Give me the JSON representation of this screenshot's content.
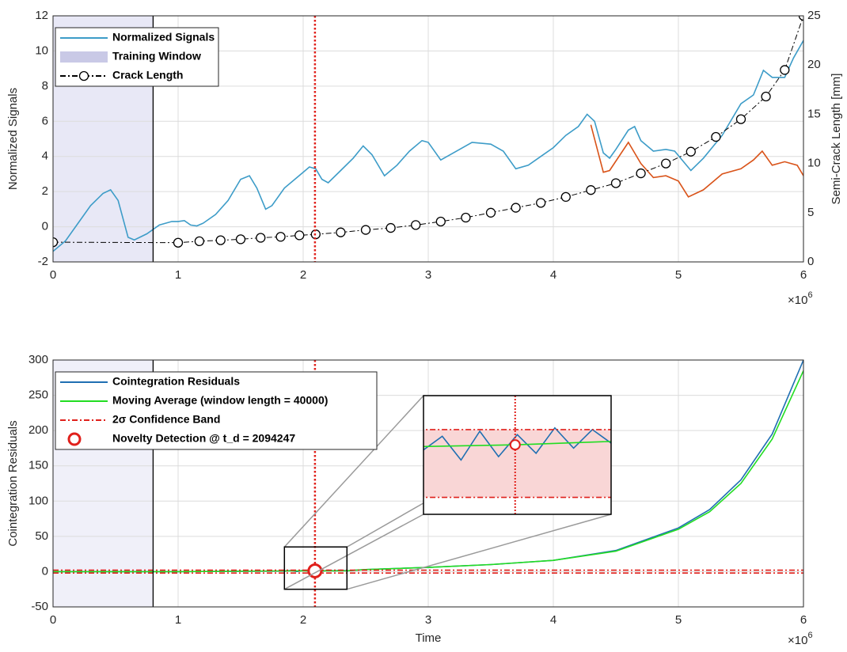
{
  "chart_data": [
    {
      "type": "line",
      "ylabel": "Normalized Signals",
      "y2label": "Semi-Crack Length [mm]",
      "x_multiplier": {
        "base": "×10",
        "exp": "6"
      },
      "xlim": [
        0,
        6
      ],
      "xticks": [
        0,
        1,
        2,
        3,
        4,
        5,
        6
      ],
      "ylim": [
        -2,
        12
      ],
      "yticks": [
        -2,
        0,
        2,
        4,
        6,
        8,
        10,
        12
      ],
      "y2lim": [
        0,
        25
      ],
      "y2ticks": [
        0,
        5,
        10,
        15,
        20,
        25
      ],
      "grid": true,
      "spans": [
        {
          "name": "Training Window",
          "x": [
            0,
            0.8
          ],
          "color": "#d9d9f0"
        }
      ],
      "vlines": [
        {
          "x": 0.8,
          "color": "#000000",
          "style": "solid"
        },
        {
          "x": 2.094247,
          "color": "#e0201b",
          "style": "dotted"
        }
      ],
      "series": [
        {
          "name": "Normalized Signals",
          "color": "#3d9cc8",
          "x": [
            0,
            0.1,
            0.2,
            0.3,
            0.4,
            0.46,
            0.52,
            0.6,
            0.65,
            0.75,
            0.85,
            0.95,
            1.0,
            1.05,
            1.1,
            1.15,
            1.2,
            1.3,
            1.4,
            1.5,
            1.57,
            1.63,
            1.7,
            1.75,
            1.85,
            1.95,
            2.05,
            2.1,
            2.15,
            2.2,
            2.3,
            2.4,
            2.48,
            2.55,
            2.65,
            2.75,
            2.85,
            2.95,
            3.0,
            3.1,
            3.2,
            3.35,
            3.5,
            3.6,
            3.7,
            3.8,
            3.9,
            4.0,
            4.1,
            4.2,
            4.27,
            4.33,
            4.4,
            4.45,
            4.5,
            4.6,
            4.65,
            4.7,
            4.8,
            4.9,
            4.97,
            5.1,
            5.2,
            5.35,
            5.5,
            5.6,
            5.68,
            5.75,
            5.85,
            5.92,
            6.0
          ],
          "values": [
            -1.4,
            -0.8,
            0.2,
            1.2,
            1.9,
            2.1,
            1.5,
            -0.6,
            -0.75,
            -0.4,
            0.1,
            0.3,
            0.3,
            0.35,
            0.1,
            0.05,
            0.2,
            0.7,
            1.5,
            2.7,
            2.9,
            2.2,
            1.0,
            1.2,
            2.2,
            2.8,
            3.4,
            3.3,
            2.7,
            2.5,
            3.2,
            3.9,
            4.6,
            4.1,
            2.9,
            3.5,
            4.3,
            4.9,
            4.8,
            3.8,
            4.2,
            4.8,
            4.7,
            4.3,
            3.3,
            3.5,
            4.0,
            4.5,
            5.2,
            5.7,
            6.4,
            6.0,
            4.2,
            3.9,
            4.4,
            5.5,
            5.7,
            4.9,
            4.3,
            4.4,
            4.3,
            3.2,
            3.9,
            5.2,
            7.0,
            7.5,
            8.9,
            8.5,
            8.5,
            9.6,
            10.6
          ]
        },
        {
          "color": "#d95319",
          "x": [
            4.3,
            4.4,
            4.45,
            4.6,
            4.7,
            4.8,
            4.9,
            5.0,
            5.08,
            5.2,
            5.35,
            5.5,
            5.6,
            5.67,
            5.75,
            5.85,
            5.95,
            6.0
          ],
          "values": [
            5.8,
            3.1,
            3.2,
            4.8,
            3.6,
            2.8,
            2.9,
            2.6,
            1.7,
            2.1,
            3.0,
            3.3,
            3.8,
            4.3,
            3.5,
            3.7,
            3.5,
            2.9
          ]
        },
        {
          "name": "Crack Length",
          "color": "#000000",
          "axis": "y2",
          "marker": "circle",
          "style": "dashdot",
          "x": [
            0,
            1,
            1.17,
            1.34,
            1.5,
            1.66,
            1.82,
            1.97,
            2.1,
            2.3,
            2.5,
            2.7,
            2.9,
            3.1,
            3.3,
            3.5,
            3.7,
            3.9,
            4.1,
            4.3,
            4.5,
            4.7,
            4.9,
            5.1,
            5.3,
            5.5,
            5.7,
            5.85,
            6
          ],
          "values": [
            2,
            1.95,
            2.1,
            2.2,
            2.3,
            2.45,
            2.55,
            2.7,
            2.8,
            3.0,
            3.25,
            3.45,
            3.75,
            4.1,
            4.5,
            5.0,
            5.5,
            6.0,
            6.6,
            7.3,
            8.0,
            9.0,
            10.0,
            11.2,
            12.7,
            14.5,
            16.8,
            19.5,
            25
          ]
        }
      ]
    },
    {
      "type": "line",
      "ylabel": "Cointegration Residuals",
      "xlabel": "Time",
      "x_multiplier": {
        "base": "×10",
        "exp": "6"
      },
      "xlim": [
        0,
        6
      ],
      "xticks": [
        0,
        1,
        2,
        3,
        4,
        5,
        6
      ],
      "ylim": [
        -50,
        300
      ],
      "yticks": [
        -50,
        0,
        50,
        100,
        150,
        200,
        250,
        300
      ],
      "grid": true,
      "spans": [
        {
          "x": [
            0,
            0.8
          ],
          "color": "#e6e6f5"
        }
      ],
      "vlines": [
        {
          "x": 0.8,
          "color": "#000000",
          "style": "solid"
        },
        {
          "x": 2.094247,
          "color": "#e0201b",
          "style": "dotted"
        }
      ],
      "series": [
        {
          "name": "Cointegration Residuals",
          "color": "#1f6fb2",
          "x": [
            0,
            1,
            1.85,
            1.9,
            1.95,
            2.0,
            2.05,
            2.1,
            2.15,
            2.2,
            2.25,
            2.3,
            2.35,
            2.5,
            3,
            3.5,
            4,
            4.5,
            5,
            5.25,
            5.5,
            5.75,
            6
          ],
          "values": [
            0,
            0,
            0.8,
            1.6,
            0.2,
            1.9,
            0.4,
            1.7,
            0.6,
            2.1,
            0.9,
            2.0,
            1.2,
            3,
            6,
            10,
            16,
            30,
            62,
            88,
            130,
            195,
            300
          ]
        },
        {
          "name": "Moving Average (window length = 40000)",
          "color": "#22dd22",
          "x": [
            0,
            1,
            1.85,
            2.1,
            2.35,
            2.5,
            3,
            3.5,
            4,
            4.5,
            5,
            5.25,
            5.5,
            5.75,
            6
          ],
          "values": [
            0,
            0,
            1.0,
            1.1,
            1.3,
            3,
            6,
            10,
            16,
            29,
            60,
            85,
            125,
            188,
            285
          ]
        },
        {
          "name": "2σ Confidence Band",
          "color": "#e0201b",
          "style": "dashdot",
          "x": [
            0,
            6
          ],
          "values": [
            2,
            2
          ]
        },
        {
          "color": "#e0201b",
          "style": "dashdot",
          "x": [
            0,
            6
          ],
          "values": [
            -2,
            -2
          ]
        }
      ],
      "novelty": {
        "name": "Novelty Detection @ t_d = 2094247",
        "x": 2.094247,
        "y": 1.1,
        "color": "#e0201b"
      },
      "zoom": {
        "xlim": [
          1.85,
          2.35
        ],
        "ylim": [
          -25,
          35
        ],
        "inset_ylim": [
          -3,
          4
        ]
      }
    }
  ]
}
